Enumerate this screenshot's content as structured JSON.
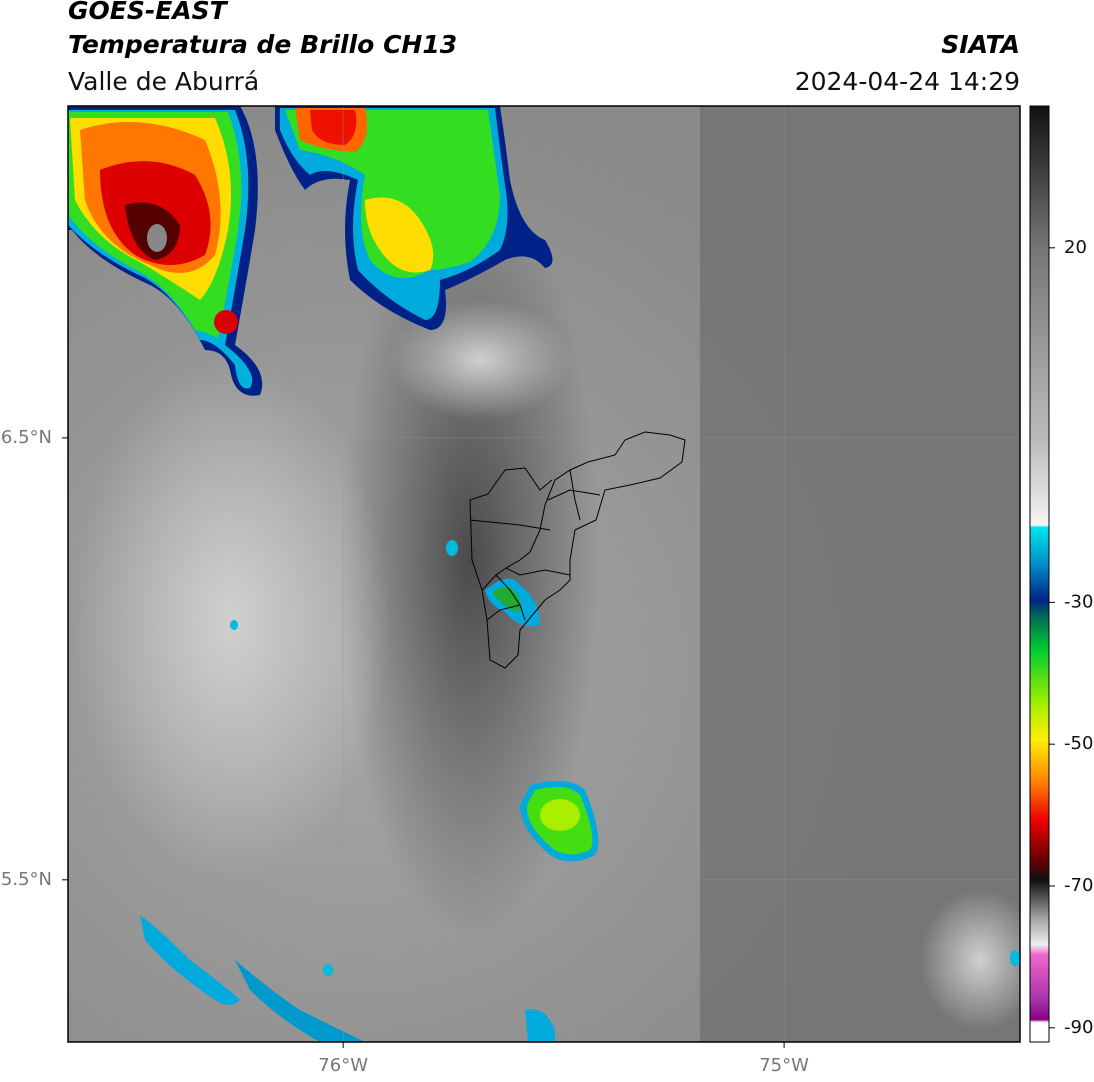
{
  "header": {
    "satellite": "GOES-EAST",
    "product": "Temperatura de Brillo CH13",
    "region": "Valle de Aburrá",
    "source": "SIATA",
    "datetime": "2024-04-24 14:29"
  },
  "map": {
    "xlim": [
      -76.624,
      -74.465
    ],
    "ylim": [
      5.133,
      7.251
    ],
    "xticks": [
      {
        "value": -76,
        "label": "76°W"
      },
      {
        "value": -75,
        "label": "75°W"
      }
    ],
    "yticks": [
      {
        "value": 5.5,
        "label": "5.5°N"
      },
      {
        "value": 6.5,
        "label": "6.5°N"
      }
    ],
    "grid": true
  },
  "colorbar": {
    "lim": [
      -92,
      40
    ],
    "ticks": [
      -90,
      -70,
      -50,
      -30,
      20
    ]
  }
}
